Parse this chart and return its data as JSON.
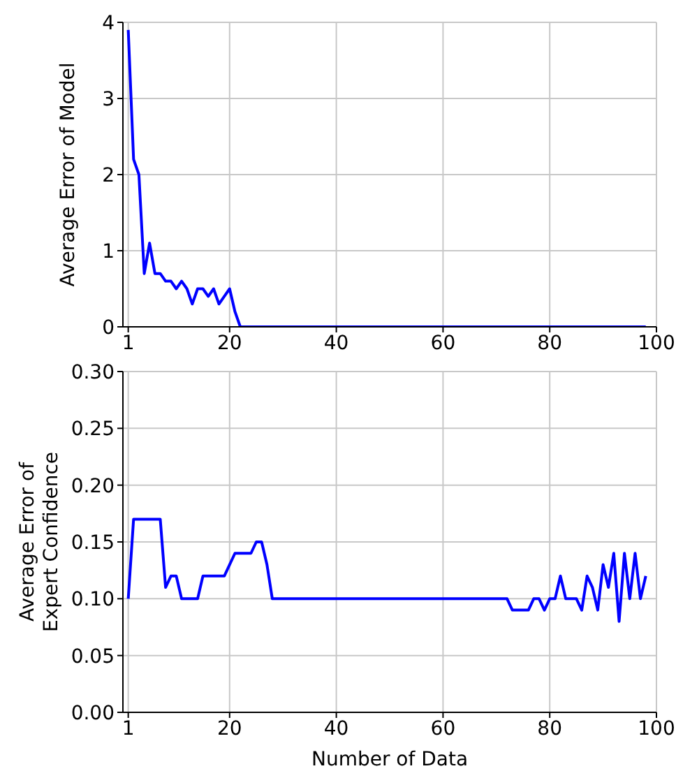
{
  "chart_data": [
    {
      "type": "line",
      "ylabel": "Average Error of Model",
      "x": [
        1,
        2,
        3,
        4,
        5,
        6,
        7,
        8,
        9,
        10,
        11,
        12,
        13,
        14,
        15,
        16,
        17,
        18,
        19,
        20,
        21,
        22,
        98
      ],
      "series": [
        {
          "color": "#0000ff",
          "values": [
            3.9,
            2.2,
            2.0,
            0.7,
            1.1,
            0.7,
            0.7,
            0.6,
            0.6,
            0.5,
            0.6,
            0.5,
            0.3,
            0.5,
            0.5,
            0.4,
            0.5,
            0.3,
            0.4,
            0.5,
            0.2,
            0,
            0
          ]
        }
      ],
      "xlim": [
        0,
        100
      ],
      "xticks": [
        1,
        20,
        40,
        60,
        80,
        100
      ],
      "ylim": [
        0,
        4
      ],
      "yticks": [
        0,
        1,
        2,
        3,
        4
      ],
      "grid": true,
      "line_style": "solid"
    },
    {
      "type": "line",
      "xlabel": "Number of Data",
      "ylabel": "Average Error of\nExpert Confidence",
      "x": [
        1,
        2,
        7,
        8,
        9,
        10,
        11,
        14,
        15,
        19,
        21,
        24,
        25,
        26,
        27,
        28,
        72,
        73,
        76,
        77,
        78,
        79,
        80,
        81,
        82,
        83,
        85,
        86,
        87,
        88,
        89,
        90,
        91,
        92,
        93,
        94,
        95,
        96,
        97,
        98
      ],
      "series": [
        {
          "color": "#0000ff",
          "values": [
            0.1,
            0.17,
            0.17,
            0.11,
            0.12,
            0.12,
            0.1,
            0.1,
            0.12,
            0.12,
            0.14,
            0.14,
            0.15,
            0.15,
            0.13,
            0.1,
            0.1,
            0.09,
            0.09,
            0.1,
            0.1,
            0.09,
            0.1,
            0.1,
            0.12,
            0.1,
            0.1,
            0.09,
            0.12,
            0.11,
            0.09,
            0.13,
            0.11,
            0.14,
            0.08,
            0.14,
            0.1,
            0.14,
            0.1,
            0.12
          ]
        }
      ],
      "xlim": [
        0,
        100
      ],
      "xticks": [
        1,
        20,
        40,
        60,
        80,
        100
      ],
      "ylim": [
        0,
        0.3
      ],
      "yticks": [
        {
          "value": 0,
          "label": "0.00"
        },
        {
          "value": 0.05,
          "label": "0.05"
        },
        {
          "value": 0.1,
          "label": "0.10"
        },
        {
          "value": 0.15,
          "label": "0.15"
        },
        {
          "value": 0.2,
          "label": "0.20"
        },
        {
          "value": 0.25,
          "label": "0.25"
        },
        {
          "value": 0.3,
          "label": "0.30"
        }
      ],
      "grid": true,
      "line_style": "solid"
    }
  ]
}
